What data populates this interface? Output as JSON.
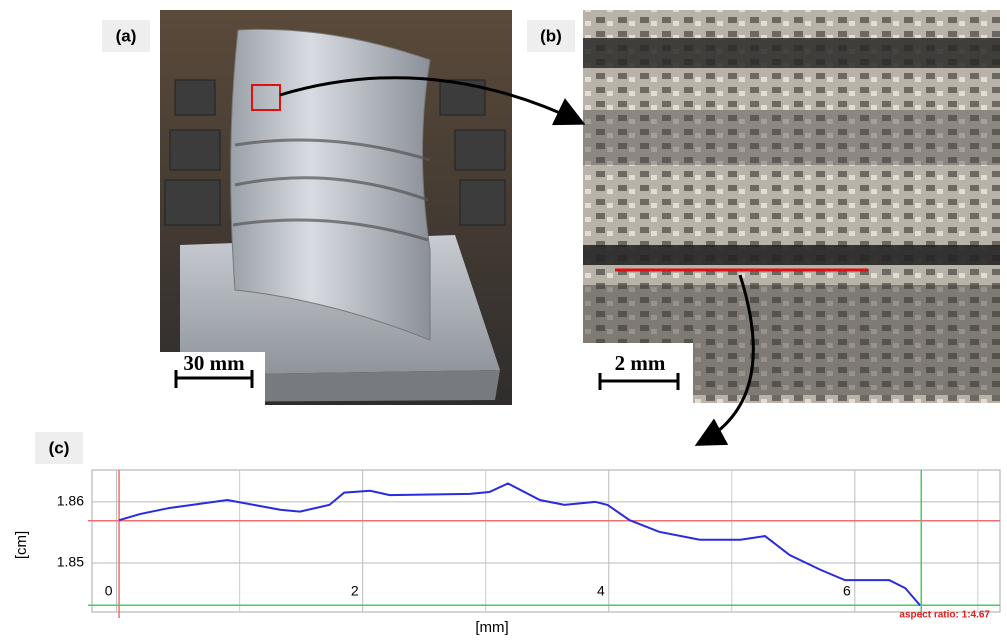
{
  "panels": {
    "a": {
      "label": "(a)",
      "scale_bar": "30 mm"
    },
    "b": {
      "label": "(b)",
      "scale_bar": "2 mm"
    },
    "c": {
      "label": "(c)"
    }
  },
  "chart_data": {
    "type": "line",
    "x_label": "[mm]",
    "y_label": "[cm]",
    "annotation": "aspect ratio: 1:4.67",
    "xlim": [
      -0.2,
      7.18
    ],
    "ylim": [
      1.842,
      1.8652
    ],
    "xticks": [
      0,
      2,
      4,
      6
    ],
    "x_grid": [
      1,
      3,
      5,
      7
    ],
    "yticks": [
      1.85,
      1.86
    ],
    "grid": true,
    "reference_lines": [
      {
        "axis": "x",
        "value": 0.02,
        "color": "#f07070"
      },
      {
        "axis": "y",
        "value": 1.8569,
        "color": "#f07070"
      },
      {
        "axis": "x",
        "value": 6.54,
        "color": "#40d060"
      },
      {
        "axis": "y",
        "value": 1.8431,
        "color": "#40d060"
      }
    ],
    "series": [
      {
        "color": "#2a2ae0",
        "x": [
          0.02,
          0.19,
          0.43,
          0.9,
          1.33,
          1.49,
          1.73,
          1.85,
          2.06,
          2.22,
          2.87,
          3.03,
          3.18,
          3.44,
          3.64,
          3.89,
          3.99,
          4.17,
          4.41,
          4.74,
          5.07,
          5.27,
          5.47,
          5.72,
          5.92,
          6.28,
          6.41,
          6.53
        ],
        "values": [
          1.857,
          1.858,
          1.859,
          1.8603,
          1.8587,
          1.8584,
          1.8595,
          1.8615,
          1.8618,
          1.8611,
          1.8613,
          1.8616,
          1.863,
          1.8603,
          1.8595,
          1.86,
          1.8595,
          1.857,
          1.8551,
          1.8538,
          1.8538,
          1.8544,
          1.8513,
          1.8489,
          1.8472,
          1.8472,
          1.8459,
          1.8431
        ]
      }
    ]
  }
}
